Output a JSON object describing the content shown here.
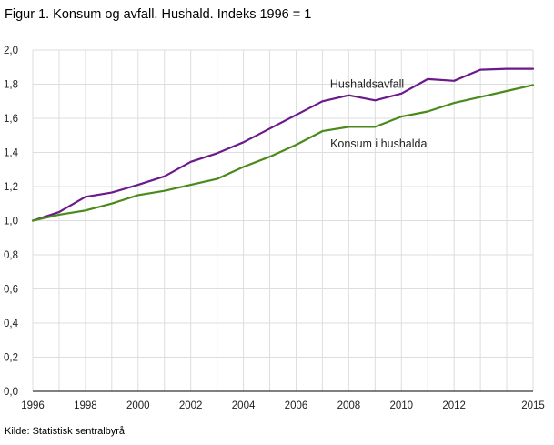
{
  "figure": {
    "title": "Figur 1. Konsum og avfall. Hushald. Indeks 1996 = 1",
    "source": "Kilde: Statistisk sentralbyrå."
  },
  "chart_data": {
    "type": "line",
    "title": "Figur 1. Konsum og avfall. Hushald. Indeks 1996 = 1",
    "xlabel": "",
    "ylabel": "",
    "x": [
      1996,
      1997,
      1998,
      1999,
      2000,
      2001,
      2002,
      2003,
      2004,
      2005,
      2006,
      2007,
      2008,
      2009,
      2010,
      2011,
      2012,
      2013,
      2014,
      2015
    ],
    "xlim": [
      1996,
      2015
    ],
    "ylim": [
      0,
      2.0
    ],
    "grid": true,
    "x_tick_labels": [
      "1996",
      "1998",
      "2000",
      "2002",
      "2004",
      "2006",
      "2008",
      "2010",
      "2012",
      "2015"
    ],
    "x_tick_values": [
      1996,
      1998,
      2000,
      2002,
      2004,
      2006,
      2008,
      2010,
      2012,
      2015
    ],
    "y_tick_labels": [
      "0,0",
      "0,2",
      "0,4",
      "0,6",
      "0,8",
      "1,0",
      "1,2",
      "1,4",
      "1,6",
      "1,8",
      "2,0"
    ],
    "y_tick_values": [
      0,
      0.2,
      0.4,
      0.6,
      0.8,
      1.0,
      1.2,
      1.4,
      1.6,
      1.8,
      2.0
    ],
    "series": [
      {
        "name": "Hushaldsavfall",
        "color": "#6a1a8a",
        "values": [
          1.0,
          1.05,
          1.14,
          1.165,
          1.21,
          1.26,
          1.345,
          1.395,
          1.46,
          1.54,
          1.62,
          1.7,
          1.735,
          1.705,
          1.745,
          1.83,
          1.82,
          1.885,
          1.89,
          1.89
        ]
      },
      {
        "name": "Konsum i hushalda",
        "color": "#4a8a1a",
        "values": [
          1.0,
          1.035,
          1.06,
          1.1,
          1.15,
          1.175,
          1.21,
          1.245,
          1.315,
          1.375,
          1.445,
          1.525,
          1.55,
          1.55,
          1.61,
          1.64,
          1.69,
          1.725,
          1.76,
          1.795
        ]
      }
    ]
  }
}
